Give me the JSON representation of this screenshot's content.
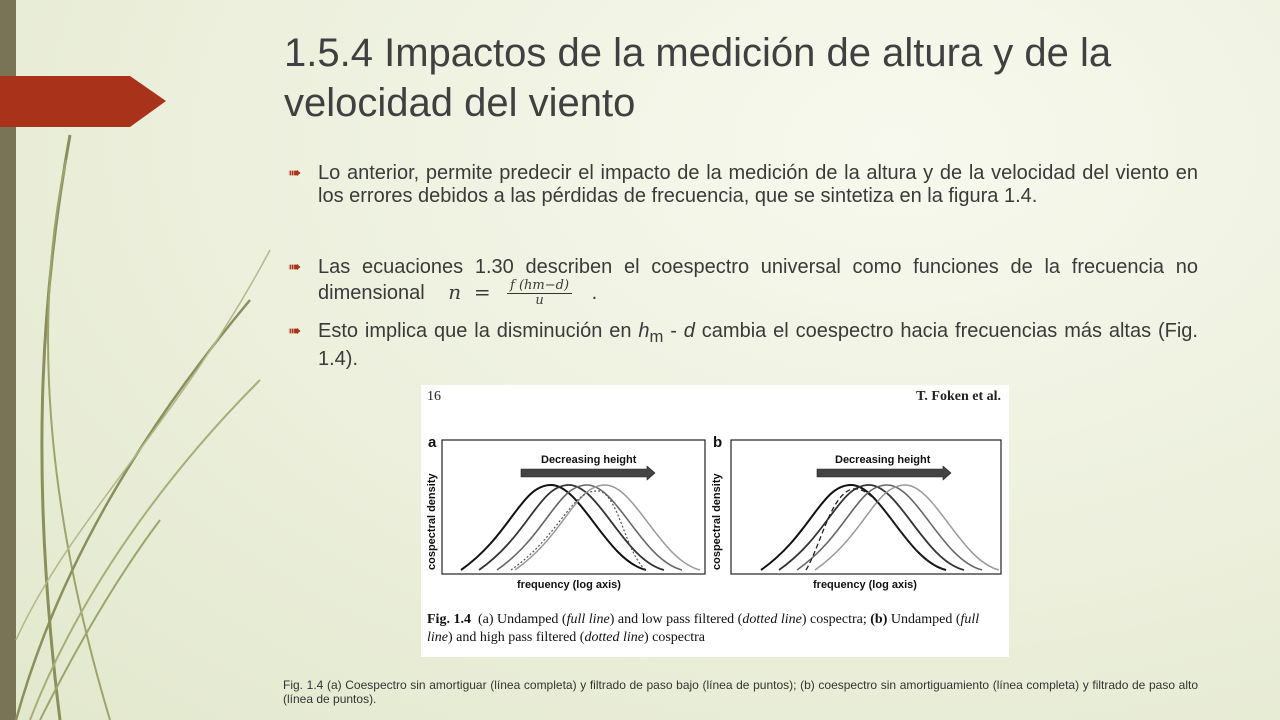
{
  "title": "1.5.4 Impactos de la medición de altura y de la velocidad del viento",
  "bullets": [
    "Lo anterior, permite predecir el impacto de la medición de la altura y de la velocidad del viento en los errores debidos a las pérdidas de frecuencia, que se sintetiza en la figura 1.4.",
    "Las ecuaciones 1.30 describen el coespectro universal como funciones de la frecuencia no dimensional",
    {
      "pre": "Esto implica que la disminución en ",
      "h": "h",
      "m": "m",
      "mid": " - ",
      "d": "d",
      "post": " cambia el coespectro hacia frecuencias más altas (Fig. 1.4)."
    }
  ],
  "equation": {
    "lhs": "n",
    "eq": "=",
    "num": "f (hm−d)",
    "den": "u",
    "end": "."
  },
  "figure": {
    "page": "16",
    "author": "T. Foken et al.",
    "panel_a": {
      "label": "a",
      "arrow_text": "Decreasing height",
      "ylabel": "cospectral density",
      "xlabel": "frequency (log axis)"
    },
    "panel_b": {
      "label": "b",
      "arrow_text": "Decreasing height",
      "ylabel": "cospectral density",
      "xlabel": "frequency (log axis)"
    },
    "caption": {
      "fig": "Fig. 1.4",
      "a_pre": "(a) Undamped (",
      "full_line": "full line",
      "a_mid": ") and low pass filtered (",
      "dotted_line": "dotted line",
      "a_post": ") cospectra; ",
      "b": "(b)",
      "b_pre": " Undamped (",
      "b_mid": ") and high pass filtered (",
      "b_post": ") cospectra"
    }
  },
  "bottom_caption": "Fig. 1.4 (a) Coespectro sin amortiguar (línea completa) y filtrado de paso bajo (línea de puntos); (b) coespectro sin amortiguamiento (línea completa) y filtrado de paso alto (línea de puntos).",
  "colors": {
    "accent": "#a8321a",
    "sidebar": "#7a7456"
  }
}
